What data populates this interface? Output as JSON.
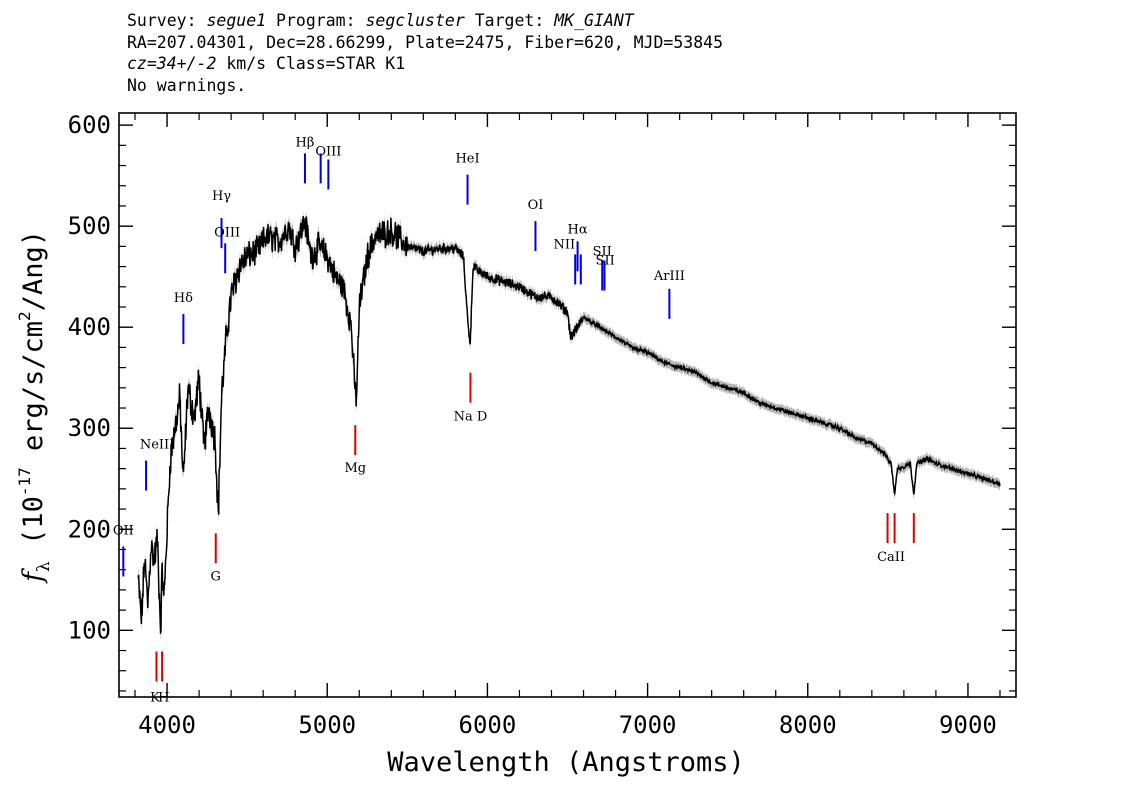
{
  "header": {
    "survey_label": "Survey:",
    "survey": "segue1",
    "program_label": "Program:",
    "program": "segcluster",
    "target_label": "Target:",
    "target": "MK_GIANT",
    "line2": "RA=207.04301, Dec=28.66299, Plate=2475, Fiber=620, MJD=53845",
    "cz": "cz=34+/-2",
    "line3_rest": " km/s Class=STAR K1",
    "line4": "No warnings."
  },
  "chart_data": {
    "type": "line",
    "xlabel": "Wavelength (Angstroms)",
    "ylabel_main": "f",
    "ylabel_sub": "λ",
    "ylabel_prefix": " (10",
    "ylabel_exp1": "-17",
    "ylabel_mid": " erg/s/cm",
    "ylabel_exp2": "2",
    "ylabel_suffix": "/Ang)",
    "xlim": [
      3700,
      9300
    ],
    "ylim": [
      34,
      612
    ],
    "xticks": [
      4000,
      5000,
      6000,
      7000,
      8000,
      9000
    ],
    "yticks": [
      100,
      200,
      300,
      400,
      500,
      600
    ],
    "spectrum": {
      "color": "#000000",
      "error_color": "#b4b4b4",
      "x": [
        3820,
        3840,
        3860,
        3880,
        3900,
        3920,
        3940,
        3960,
        3970,
        3980,
        4000,
        4020,
        4050,
        4080,
        4101,
        4130,
        4170,
        4200,
        4230,
        4260,
        4300,
        4320,
        4340,
        4370,
        4400,
        4450,
        4500,
        4560,
        4620,
        4700,
        4760,
        4800,
        4861,
        4900,
        4950,
        5000,
        5050,
        5100,
        5150,
        5172,
        5183,
        5200,
        5250,
        5300,
        5400,
        5500,
        5600,
        5700,
        5800,
        5850,
        5880,
        5893,
        5910,
        5950,
        6000,
        6100,
        6200,
        6300,
        6400,
        6500,
        6520,
        6563,
        6600,
        6700,
        6800,
        6900,
        7000,
        7100,
        7200,
        7300,
        7400,
        7500,
        7600,
        7700,
        7800,
        7900,
        8000,
        8100,
        8200,
        8300,
        8400,
        8480,
        8498,
        8520,
        8542,
        8560,
        8600,
        8640,
        8662,
        8680,
        8750,
        8800,
        8900,
        9000,
        9100,
        9200
      ],
      "y": [
        150,
        110,
        170,
        125,
        185,
        170,
        190,
        100,
        160,
        130,
        200,
        270,
        300,
        330,
        245,
        340,
        310,
        350,
        280,
        320,
        290,
        215,
        330,
        390,
        430,
        460,
        470,
        475,
        490,
        485,
        500,
        480,
        505,
        470,
        480,
        470,
        450,
        440,
        400,
        340,
        330,
        420,
        470,
        490,
        495,
        480,
        475,
        478,
        478,
        470,
        400,
        385,
        460,
        455,
        450,
        445,
        440,
        430,
        430,
        415,
        390,
        400,
        410,
        400,
        390,
        380,
        375,
        365,
        360,
        355,
        345,
        340,
        335,
        325,
        320,
        315,
        310,
        305,
        300,
        290,
        285,
        275,
        270,
        265,
        235,
        260,
        262,
        265,
        235,
        265,
        270,
        265,
        260,
        255,
        250,
        245
      ]
    },
    "emission_lines": [
      {
        "label": "OII",
        "wavelength": 3727,
        "y_top": 183
      },
      {
        "label": "NeIII",
        "wavelength": 3869,
        "y_top": 268
      },
      {
        "label": "Hδ",
        "wavelength": 4102,
        "y_top": 413
      },
      {
        "label": "Hγ",
        "wavelength": 4340,
        "y_top": 508
      },
      {
        "label": "OIII",
        "wavelength": 4363,
        "y_top": 483
      },
      {
        "label": "Hβ",
        "wavelength": 4861,
        "y_top": 572
      },
      {
        "label": "OIII",
        "wavelength": 4959,
        "y_top": 572
      },
      {
        "label": "OIII",
        "wavelength": 5007,
        "y_top": 566
      },
      {
        "label": "HeI",
        "wavelength": 5876,
        "y_top": 551
      },
      {
        "label": "OI",
        "wavelength": 6300,
        "y_top": 505
      },
      {
        "label": "NII",
        "wavelength": 6548,
        "y_top": 472
      },
      {
        "label": "Hα",
        "wavelength": 6563,
        "y_top": 485
      },
      {
        "label": "NII",
        "wavelength": 6583,
        "y_top": 472
      },
      {
        "label": "SII",
        "wavelength": 6717,
        "y_top": 466
      },
      {
        "label": "SII",
        "wavelength": 6731,
        "y_top": 466
      },
      {
        "label": "ArIII",
        "wavelength": 7136,
        "y_top": 438
      }
    ],
    "absorption_lines": [
      {
        "label": "K",
        "wavelength": 3934,
        "y_top": 79
      },
      {
        "label": "H",
        "wavelength": 3969,
        "y_top": 79
      },
      {
        "label": "G",
        "wavelength": 4304,
        "y_top": 196
      },
      {
        "label": "Mg",
        "wavelength": 5175,
        "y_top": 303
      },
      {
        "label": "Na D",
        "wavelength": 5894,
        "y_top": 355
      },
      {
        "label": "CaII",
        "wavelength": 8498,
        "y_top": 216
      },
      {
        "label": "CaII",
        "wavelength": 8542,
        "y_top": 216
      },
      {
        "label": "CaII",
        "wavelength": 8662,
        "y_top": 216
      }
    ],
    "line_colors": {
      "emission": "#0000dd",
      "absorption": "#dd0000"
    }
  }
}
